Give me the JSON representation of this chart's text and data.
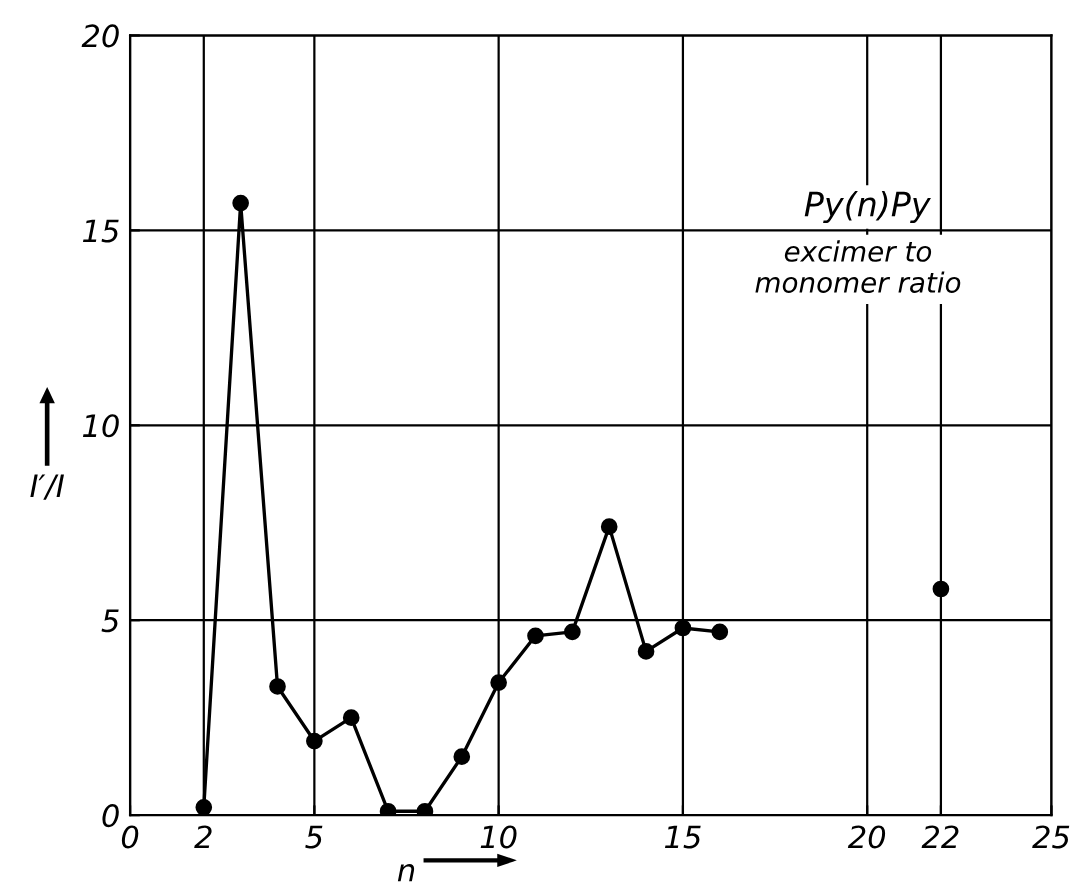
{
  "chart_data": {
    "type": "line",
    "xlabel": "n",
    "ylabel": "I′/I",
    "annotations": [
      "Py(n)Py",
      "excimer to\nmonomer ratio"
    ],
    "series": [
      {
        "color": "#000000",
        "x": [
          2,
          3,
          4,
          5,
          6,
          7,
          8,
          9,
          10,
          11,
          12,
          13,
          14,
          15,
          16
        ],
        "values": [
          0.2,
          15.7,
          3.3,
          1.9,
          2.5,
          0.1,
          0.1,
          1.5,
          3.4,
          4.6,
          4.7,
          7.4,
          4.2,
          4.8,
          4.7
        ]
      },
      {
        "type": "scatter",
        "color": "#000000",
        "x": [
          22
        ],
        "values": [
          5.8
        ]
      }
    ],
    "marker": "circle",
    "line_style": "solid",
    "xlim": [
      0,
      25
    ],
    "xticks": [
      0,
      2,
      5,
      10,
      15,
      20,
      22,
      25
    ],
    "ylim": [
      0,
      20
    ],
    "yticks": [
      0,
      5,
      10,
      15,
      20
    ],
    "grid": true,
    "legend": false
  }
}
